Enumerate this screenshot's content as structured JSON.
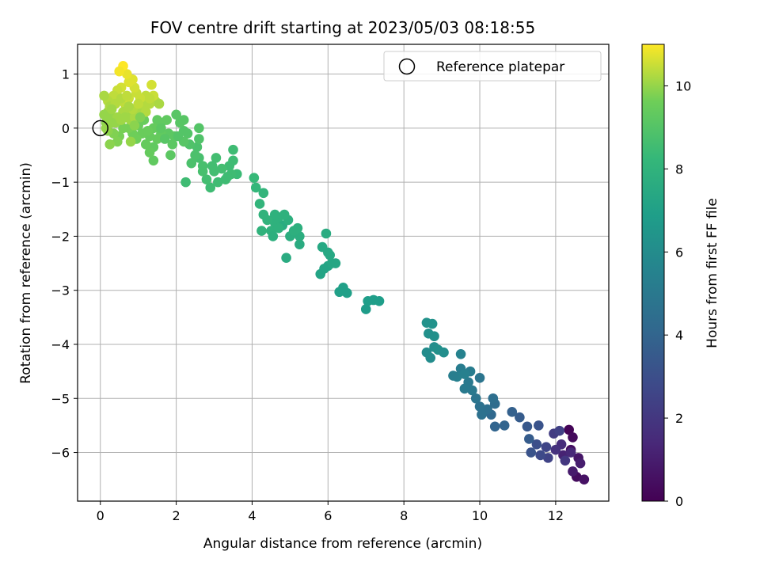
{
  "chart_data": {
    "type": "scatter",
    "title": "FOV centre drift starting at 2023/05/03 08:18:55",
    "xlabel": "Angular distance from reference (arcmin)",
    "ylabel": "Rotation from reference (arcmin)",
    "xlim": [
      -0.6,
      13.4
    ],
    "ylim": [
      -6.9,
      1.55
    ],
    "xticks": [
      0,
      2,
      4,
      6,
      8,
      10,
      12
    ],
    "yticks": [
      1,
      0,
      -1,
      -2,
      -3,
      -4,
      -5,
      -6
    ],
    "grid": true,
    "legend": {
      "position": "top-right",
      "entries": [
        "Reference platepar"
      ]
    },
    "reference_point": {
      "x": 0,
      "y": 0,
      "marker": "open-circle"
    },
    "colorbar": {
      "label": "Hours from first FF file",
      "colormap": "viridis",
      "range": [
        0,
        11
      ],
      "ticks": [
        0,
        2,
        4,
        6,
        8,
        10
      ]
    },
    "points": [
      [
        12.35,
        -5.58,
        0.1
      ],
      [
        12.45,
        -5.72,
        0.3
      ],
      [
        12.4,
        -5.95,
        0.5
      ],
      [
        12.6,
        -6.1,
        0.7
      ],
      [
        12.55,
        -6.45,
        0.4
      ],
      [
        12.75,
        -6.5,
        0.6
      ],
      [
        12.45,
        -6.35,
        0.9
      ],
      [
        12.65,
        -6.2,
        1.0
      ],
      [
        12.2,
        -6.05,
        1.2
      ],
      [
        12.4,
        -6.0,
        1.4
      ],
      [
        12.15,
        -5.85,
        1.6
      ],
      [
        12.0,
        -5.95,
        1.8
      ],
      [
        12.25,
        -6.15,
        2.0
      ],
      [
        11.95,
        -5.65,
        2.2
      ],
      [
        12.1,
        -5.6,
        2.4
      ],
      [
        11.8,
        -6.1,
        2.5
      ],
      [
        11.75,
        -5.9,
        2.6
      ],
      [
        11.6,
        -6.05,
        2.8
      ],
      [
        11.5,
        -5.85,
        3.0
      ],
      [
        11.35,
        -6.0,
        3.2
      ],
      [
        11.55,
        -5.5,
        3.2
      ],
      [
        11.25,
        -5.52,
        3.4
      ],
      [
        11.3,
        -5.75,
        3.6
      ],
      [
        11.05,
        -5.35,
        3.6
      ],
      [
        10.85,
        -5.25,
        3.8
      ],
      [
        10.65,
        -5.5,
        4.0
      ],
      [
        10.4,
        -5.52,
        4.0
      ],
      [
        10.3,
        -5.3,
        4.2
      ],
      [
        10.4,
        -5.1,
        4.4
      ],
      [
        10.2,
        -5.2,
        4.5
      ],
      [
        10.0,
        -5.15,
        4.6
      ],
      [
        10.05,
        -5.3,
        4.6
      ],
      [
        10.35,
        -5.0,
        4.5
      ],
      [
        9.9,
        -5.0,
        4.8
      ],
      [
        10.0,
        -4.62,
        4.8
      ],
      [
        9.8,
        -4.85,
        5.0
      ],
      [
        9.7,
        -4.7,
        5.0
      ],
      [
        9.6,
        -4.82,
        5.1
      ],
      [
        9.75,
        -4.5,
        5.2
      ],
      [
        9.5,
        -4.45,
        5.2
      ],
      [
        9.6,
        -4.55,
        5.4
      ],
      [
        9.4,
        -4.6,
        5.4
      ],
      [
        9.3,
        -4.58,
        5.3
      ],
      [
        9.5,
        -4.18,
        5.5
      ],
      [
        8.6,
        -4.15,
        6.0
      ],
      [
        8.7,
        -4.25,
        6.0
      ],
      [
        8.8,
        -4.05,
        6.1
      ],
      [
        8.65,
        -3.8,
        6.2
      ],
      [
        8.8,
        -3.85,
        6.2
      ],
      [
        8.9,
        -4.1,
        6.2
      ],
      [
        8.75,
        -3.62,
        6.3
      ],
      [
        8.6,
        -3.6,
        6.3
      ],
      [
        9.05,
        -4.15,
        6.1
      ],
      [
        7.0,
        -3.35,
        6.8
      ],
      [
        7.05,
        -3.2,
        6.9
      ],
      [
        7.2,
        -3.18,
        6.9
      ],
      [
        7.35,
        -3.2,
        6.9
      ],
      [
        6.4,
        -2.95,
        7.0
      ],
      [
        6.5,
        -3.05,
        7.0
      ],
      [
        6.3,
        -3.03,
        7.0
      ],
      [
        5.8,
        -2.7,
        7.2
      ],
      [
        5.9,
        -2.6,
        7.2
      ],
      [
        6.0,
        -2.55,
        7.2
      ],
      [
        6.1,
        -2.5,
        7.3
      ],
      [
        6.2,
        -2.5,
        7.3
      ],
      [
        6.0,
        -2.3,
        7.4
      ],
      [
        5.85,
        -2.2,
        7.4
      ],
      [
        6.05,
        -2.35,
        7.4
      ],
      [
        5.95,
        -1.95,
        7.6
      ],
      [
        4.8,
        -1.8,
        7.6
      ],
      [
        4.9,
        -2.4,
        7.6
      ],
      [
        5.0,
        -2.0,
        7.7
      ],
      [
        5.25,
        -2.15,
        7.6
      ],
      [
        5.25,
        -2.0,
        7.7
      ],
      [
        5.1,
        -1.9,
        7.8
      ],
      [
        5.2,
        -1.85,
        7.8
      ],
      [
        4.95,
        -1.7,
        7.8
      ],
      [
        4.85,
        -1.6,
        7.9
      ],
      [
        4.7,
        -1.65,
        7.9
      ],
      [
        4.6,
        -1.75,
        7.9
      ],
      [
        4.5,
        -1.9,
        7.9
      ],
      [
        4.55,
        -2.0,
        7.8
      ],
      [
        4.4,
        -1.7,
        8.0
      ],
      [
        4.3,
        -1.6,
        8.0
      ],
      [
        4.2,
        -1.4,
        8.1
      ],
      [
        4.3,
        -1.2,
        8.1
      ],
      [
        4.1,
        -1.1,
        8.2
      ],
      [
        4.05,
        -0.92,
        8.3
      ],
      [
        4.25,
        -1.9,
        8.0
      ],
      [
        4.7,
        -1.85,
        7.9
      ],
      [
        4.6,
        -1.6,
        7.9
      ],
      [
        3.5,
        -0.4,
        8.5
      ],
      [
        3.5,
        -0.6,
        8.5
      ],
      [
        3.4,
        -0.7,
        8.5
      ],
      [
        3.6,
        -0.85,
        8.4
      ],
      [
        3.3,
        -0.95,
        8.5
      ],
      [
        3.2,
        -0.75,
        8.6
      ],
      [
        3.0,
        -0.8,
        8.6
      ],
      [
        3.1,
        -1.0,
        8.5
      ],
      [
        2.9,
        -1.1,
        8.5
      ],
      [
        2.8,
        -0.95,
        8.6
      ],
      [
        2.7,
        -0.7,
        8.7
      ],
      [
        2.6,
        -0.55,
        8.7
      ],
      [
        2.5,
        -0.5,
        8.8
      ],
      [
        2.4,
        -0.65,
        8.8
      ],
      [
        2.55,
        -0.35,
        8.8
      ],
      [
        2.35,
        -0.3,
        8.9
      ],
      [
        2.6,
        -0.2,
        8.9
      ],
      [
        2.6,
        0.0,
        9.0
      ],
      [
        2.7,
        -0.8,
        8.7
      ],
      [
        2.95,
        -0.7,
        8.6
      ],
      [
        3.05,
        -0.55,
        8.6
      ],
      [
        3.45,
        -0.85,
        8.5
      ],
      [
        2.25,
        -1.0,
        8.5
      ],
      [
        3.35,
        -0.9,
        8.5
      ],
      [
        2.3,
        -0.1,
        9.0
      ],
      [
        2.2,
        -0.05,
        9.0
      ],
      [
        2.1,
        0.1,
        9.1
      ],
      [
        2.0,
        0.25,
        9.1
      ],
      [
        2.2,
        0.15,
        9.1
      ],
      [
        1.95,
        -0.15,
        9.2
      ],
      [
        1.8,
        -0.1,
        9.2
      ],
      [
        1.9,
        -0.3,
        9.2
      ],
      [
        1.85,
        -0.5,
        9.2
      ],
      [
        2.2,
        -0.25,
        9.1
      ],
      [
        1.6,
        0.1,
        9.3
      ],
      [
        1.5,
        0.15,
        9.3
      ],
      [
        1.6,
        -0.1,
        9.3
      ],
      [
        1.4,
        0.0,
        9.4
      ],
      [
        1.5,
        -0.2,
        9.4
      ],
      [
        1.3,
        -0.15,
        9.4
      ],
      [
        1.4,
        -0.35,
        9.3
      ],
      [
        1.4,
        -0.6,
        9.3
      ],
      [
        1.3,
        -0.45,
        9.4
      ],
      [
        1.2,
        -0.3,
        9.4
      ],
      [
        1.1,
        -0.1,
        9.5
      ],
      [
        1.0,
        0.05,
        9.5
      ],
      [
        1.15,
        0.15,
        9.5
      ],
      [
        0.95,
        -0.2,
        9.6
      ],
      [
        0.85,
        -0.1,
        9.6
      ],
      [
        0.75,
        0.0,
        9.7
      ],
      [
        0.6,
        0.0,
        9.7
      ],
      [
        0.5,
        -0.15,
        9.7
      ],
      [
        0.45,
        -0.25,
        9.8
      ],
      [
        0.35,
        -0.1,
        9.8
      ],
      [
        0.2,
        -0.05,
        9.9
      ],
      [
        0.15,
        0.1,
        9.9
      ],
      [
        0.25,
        -0.3,
        9.9
      ],
      [
        0.1,
        0.25,
        10.0
      ],
      [
        0.2,
        0.3,
        10.0
      ],
      [
        0.3,
        0.2,
        10.0
      ],
      [
        0.4,
        0.1,
        10.0
      ],
      [
        0.55,
        0.15,
        10.1
      ],
      [
        0.7,
        0.25,
        10.1
      ],
      [
        0.8,
        0.15,
        10.1
      ],
      [
        0.9,
        0.2,
        10.2
      ],
      [
        1.0,
        0.35,
        10.2
      ],
      [
        1.1,
        0.45,
        10.3
      ],
      [
        1.2,
        0.3,
        10.3
      ],
      [
        1.3,
        0.45,
        10.3
      ],
      [
        1.45,
        0.5,
        10.3
      ],
      [
        1.55,
        0.45,
        10.2
      ],
      [
        1.2,
        0.6,
        10.4
      ],
      [
        1.05,
        0.55,
        10.5
      ],
      [
        0.95,
        0.65,
        10.5
      ],
      [
        0.9,
        0.75,
        10.6
      ],
      [
        0.85,
        0.9,
        10.7
      ],
      [
        0.75,
        0.85,
        10.7
      ],
      [
        0.7,
        1.0,
        10.8
      ],
      [
        0.6,
        1.15,
        11.0
      ],
      [
        0.5,
        1.05,
        10.9
      ],
      [
        0.55,
        0.75,
        10.6
      ],
      [
        0.45,
        0.7,
        10.5
      ],
      [
        0.35,
        0.6,
        10.4
      ],
      [
        0.2,
        0.5,
        10.3
      ],
      [
        0.1,
        0.6,
        10.2
      ],
      [
        0.25,
        0.4,
        10.2
      ],
      [
        0.4,
        0.45,
        10.3
      ],
      [
        0.65,
        0.45,
        10.4
      ],
      [
        0.75,
        0.55,
        10.5
      ],
      [
        1.35,
        0.8,
        10.6
      ],
      [
        1.4,
        0.6,
        10.5
      ],
      [
        1.3,
        0.55,
        10.4
      ],
      [
        0.85,
        0.35,
        10.3
      ],
      [
        0.6,
        0.3,
        10.2
      ],
      [
        0.45,
        0.2,
        10.1
      ],
      [
        0.3,
        0.1,
        10.0
      ],
      [
        0.15,
        0.0,
        10.0
      ],
      [
        0.2,
        0.15,
        10.0
      ],
      [
        0.3,
        0.35,
        10.1
      ],
      [
        0.55,
        0.55,
        10.3
      ],
      [
        0.7,
        0.6,
        10.4
      ],
      [
        0.8,
        -0.25,
        10.0
      ],
      [
        0.65,
        0.2,
        10.1
      ],
      [
        1.0,
        0.45,
        10.4
      ],
      [
        1.6,
        0.0,
        9.2
      ],
      [
        1.7,
        -0.2,
        9.1
      ],
      [
        2.05,
        -0.15,
        9.0
      ],
      [
        1.75,
        0.15,
        9.3
      ],
      [
        1.25,
        -0.05,
        9.5
      ],
      [
        1.05,
        0.2,
        9.8
      ],
      [
        0.9,
        0.05,
        9.9
      ],
      [
        0.75,
        0.4,
        10.2
      ]
    ]
  }
}
